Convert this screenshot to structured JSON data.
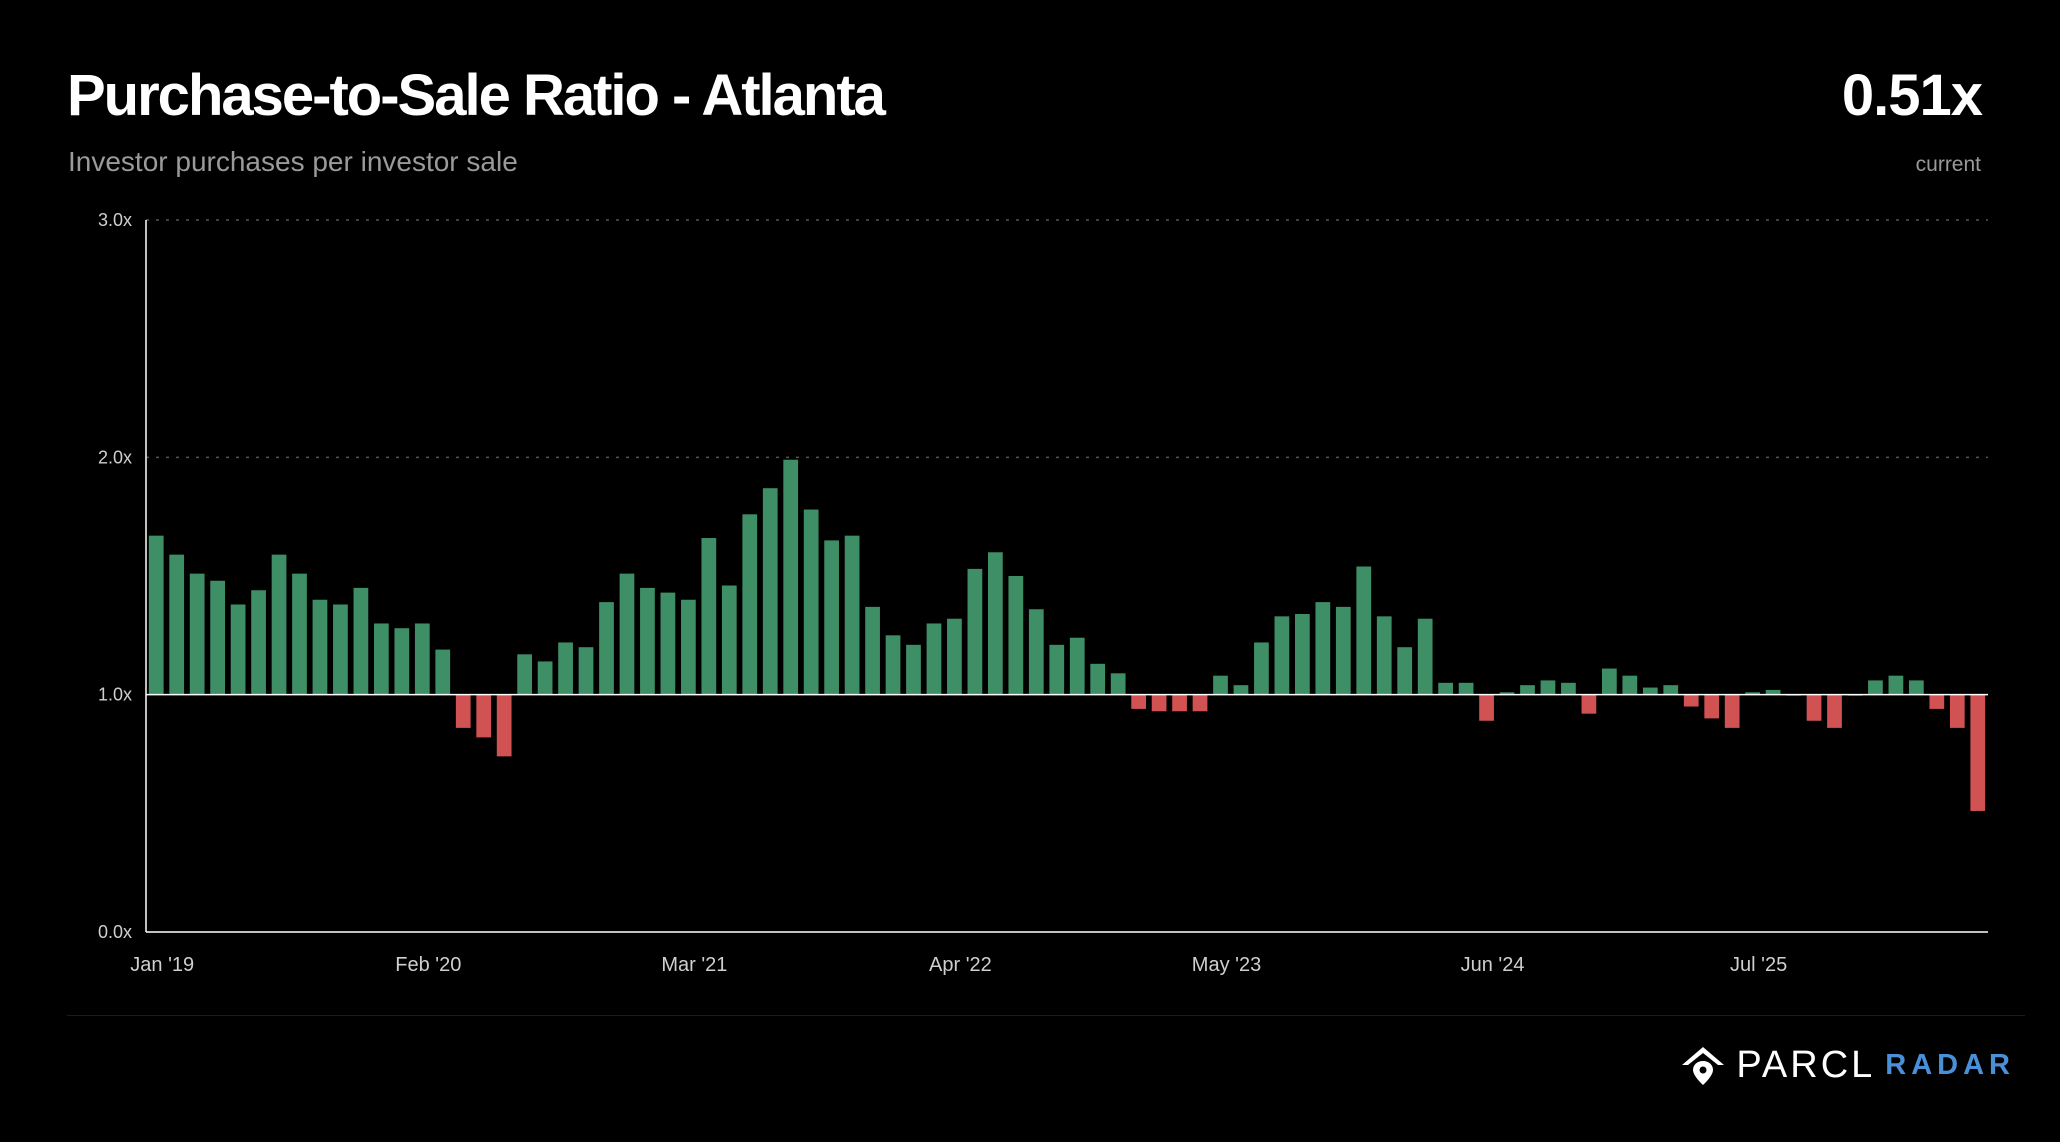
{
  "header": {
    "title": "Purchase-to-Sale Ratio - Atlanta",
    "subtitle": "Investor purchases per investor sale",
    "current_value": "0.51x",
    "current_label": "current"
  },
  "brand": {
    "name": "PARCL",
    "product": "RADAR",
    "product_color": "#4a90d9",
    "icon": "house-pin-icon"
  },
  "colors": {
    "above": "#3f8f66",
    "below": "#d05252",
    "axis": "#ffffff",
    "grid": "#555555",
    "tick_text": "#cfcfcf"
  },
  "chart_data": {
    "type": "bar",
    "title": "Purchase-to-Sale Ratio - Atlanta",
    "subtitle": "Investor purchases per investor sale",
    "xlabel": "",
    "ylabel": "",
    "ylim": [
      0,
      3
    ],
    "baseline": 1.0,
    "grid": true,
    "legend": "none",
    "y_ticks": [
      {
        "value": 0,
        "label": "0.0x"
      },
      {
        "value": 1,
        "label": "1.0x"
      },
      {
        "value": 2,
        "label": "2.0x"
      },
      {
        "value": 3,
        "label": "3.0x"
      }
    ],
    "x_ticks": [
      {
        "index": 0,
        "label": "Jan '19"
      },
      {
        "index": 13,
        "label": "Feb '20"
      },
      {
        "index": 26,
        "label": "Mar '21"
      },
      {
        "index": 39,
        "label": "Apr '22"
      },
      {
        "index": 52,
        "label": "May '23"
      },
      {
        "index": 65,
        "label": "Jun '24"
      },
      {
        "index": 78,
        "label": "Jul '25"
      }
    ],
    "values": [
      1.67,
      1.59,
      1.51,
      1.48,
      1.38,
      1.44,
      1.59,
      1.51,
      1.4,
      1.38,
      1.45,
      1.3,
      1.28,
      1.3,
      1.19,
      0.86,
      0.82,
      0.74,
      1.17,
      1.14,
      1.22,
      1.2,
      1.39,
      1.51,
      1.45,
      1.43,
      1.4,
      1.66,
      1.46,
      1.76,
      1.87,
      1.99,
      1.78,
      1.65,
      1.67,
      1.37,
      1.25,
      1.21,
      1.3,
      1.32,
      1.53,
      1.6,
      1.5,
      1.36,
      1.21,
      1.24,
      1.13,
      1.09,
      0.94,
      0.93,
      0.93,
      0.93,
      1.08,
      1.04,
      1.22,
      1.33,
      1.34,
      1.39,
      1.37,
      1.54,
      1.33,
      1.2,
      1.32,
      1.05,
      1.05,
      0.89,
      1.01,
      1.04,
      1.06,
      1.05,
      0.92,
      1.11,
      1.08,
      1.03,
      1.04,
      0.95,
      0.9,
      0.86,
      1.01,
      1.02,
      1.0,
      0.89,
      0.86,
      1.0,
      1.06,
      1.08,
      1.06,
      0.94,
      0.86,
      0.51
    ]
  }
}
